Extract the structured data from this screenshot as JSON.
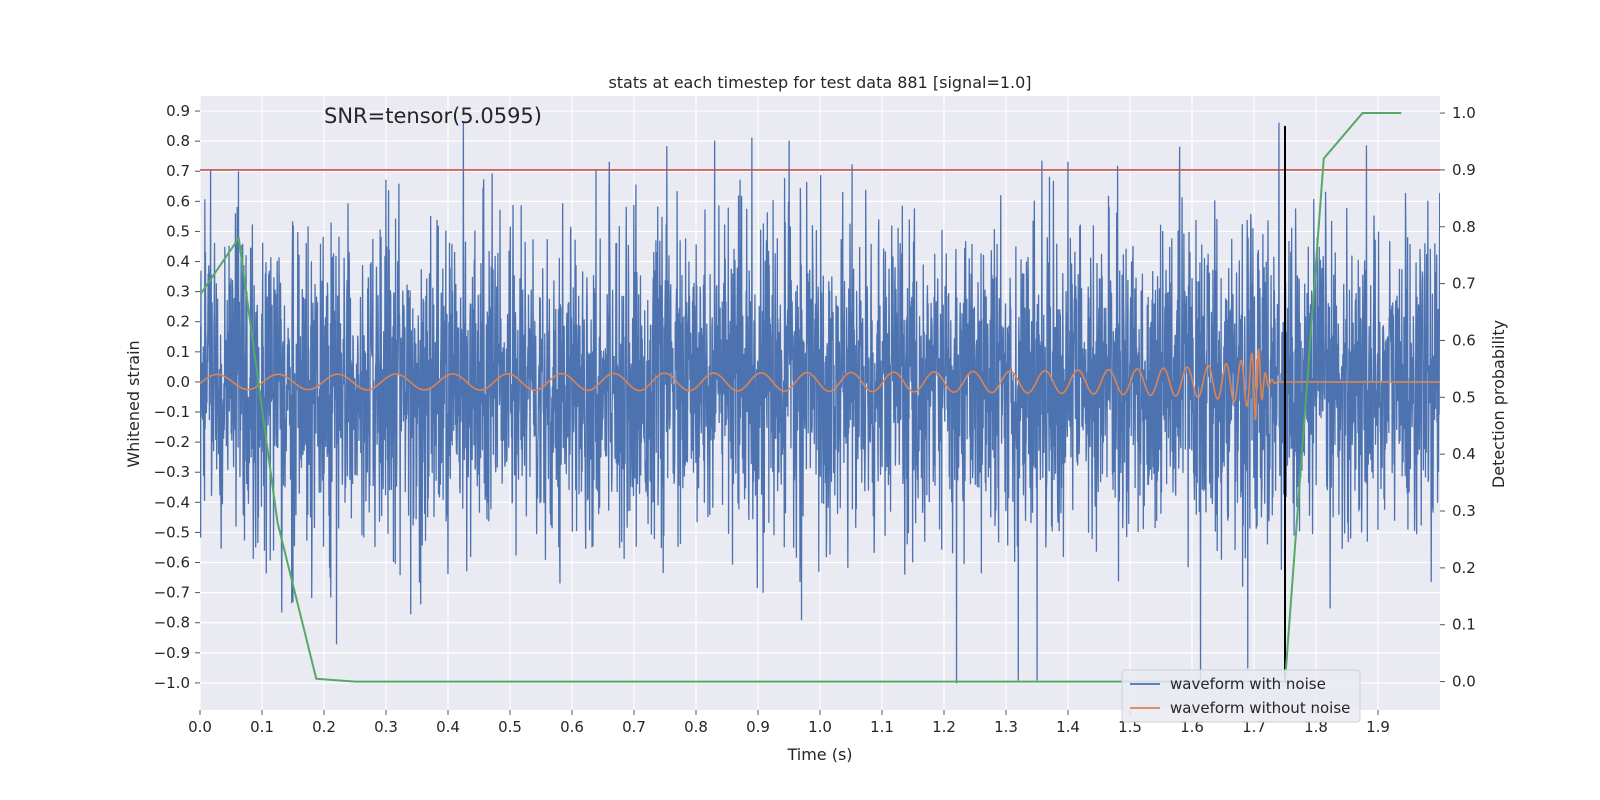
{
  "chart_data": {
    "type": "line",
    "title": "stats at each timestep for test data 881 [signal=1.0]",
    "annotation": "SNR=tensor(5.0595)",
    "xlabel": "Time (s)",
    "ylabel_left": "Whitened strain",
    "ylabel_right": "Detection probability",
    "xlim": [
      0.0,
      2.0
    ],
    "ylim_left": [
      -1.09,
      0.95
    ],
    "ylim_right": [
      -0.05,
      1.03
    ],
    "grid": true,
    "legend_position": "bottom-right",
    "xticks": [
      "0.0",
      "0.1",
      "0.2",
      "0.3",
      "0.4",
      "0.5",
      "0.6",
      "0.7",
      "0.8",
      "0.9",
      "1.0",
      "1.1",
      "1.2",
      "1.3",
      "1.4",
      "1.5",
      "1.6",
      "1.7",
      "1.8",
      "1.9"
    ],
    "yticks_left": [
      "0.9",
      "0.8",
      "0.7",
      "0.6",
      "0.5",
      "0.4",
      "0.3",
      "0.2",
      "0.1",
      "0.0",
      "−0.1",
      "−0.2",
      "−0.3",
      "−0.4",
      "−0.5",
      "−0.6",
      "−0.7",
      "−0.8",
      "−0.9",
      "−1.0"
    ],
    "yticks_right": [
      "1.0",
      "0.9",
      "0.8",
      "0.7",
      "0.6",
      "0.5",
      "0.4",
      "0.3",
      "0.2",
      "0.1",
      "0.0"
    ],
    "threshold": {
      "y": 0.9,
      "axis": "right",
      "color": "#c44e52"
    },
    "merger_marker": {
      "x": 1.75,
      "y_range": [
        -1.0,
        0.85
      ],
      "color": "#000000"
    },
    "series": [
      {
        "name": "waveform with noise",
        "axis": "left",
        "color": "#4c72b0",
        "noise_amplitude": 0.25,
        "peaks": [
          {
            "x": 0.06,
            "y": 0.58
          },
          {
            "x": 0.15,
            "y": -0.73
          },
          {
            "x": 0.21,
            "y": -0.65
          },
          {
            "x": 0.22,
            "y": -0.87
          },
          {
            "x": 0.3,
            "y": 0.67
          },
          {
            "x": 0.34,
            "y": 0.77
          },
          {
            "x": 0.34,
            "y": -0.77
          },
          {
            "x": 0.66,
            "y": 0.73
          },
          {
            "x": 0.83,
            "y": 0.8
          },
          {
            "x": 0.89,
            "y": 0.81
          },
          {
            "x": 0.95,
            "y": 0.8
          },
          {
            "x": 0.97,
            "y": -0.79
          },
          {
            "x": 1.22,
            "y": -1.0
          },
          {
            "x": 1.32,
            "y": -0.99
          },
          {
            "x": 1.35,
            "y": -0.99
          },
          {
            "x": 1.37,
            "y": 0.68
          },
          {
            "x": 1.4,
            "y": 0.73
          },
          {
            "x": 1.58,
            "y": 0.78
          },
          {
            "x": 1.69,
            "y": -0.95
          },
          {
            "x": 1.74,
            "y": 0.86
          },
          {
            "x": 1.75,
            "y": 0.85
          }
        ]
      },
      {
        "name": "waveform without noise",
        "axis": "left",
        "color": "#dd8452",
        "chirp": {
          "t_merger": 1.705,
          "base_amplitude": 0.025,
          "max_amplitude": 0.15,
          "f_start": 10,
          "f_end": 90
        }
      },
      {
        "name": "detection probability",
        "axis": "right",
        "color": "#55a868",
        "x": [
          0.0,
          0.0625,
          0.125,
          0.1875,
          0.25,
          0.3125,
          0.375,
          0.4375,
          0.5,
          0.5625,
          0.625,
          0.6875,
          0.75,
          0.8125,
          0.875,
          0.9375,
          1.0,
          1.0625,
          1.125,
          1.1875,
          1.25,
          1.3125,
          1.375,
          1.4375,
          1.5,
          1.5625,
          1.625,
          1.6875,
          1.75,
          1.8125,
          1.875,
          1.9375
        ],
        "values": [
          0.68,
          0.78,
          0.28,
          0.005,
          0.0,
          0.0,
          0.0,
          0.0,
          0.0,
          0.0,
          0.0,
          0.0,
          0.0,
          0.0,
          0.0,
          0.0,
          0.0,
          0.0,
          0.0,
          0.0,
          0.0,
          0.0,
          0.0,
          0.0,
          0.0,
          0.0,
          0.0,
          0.0,
          0.0,
          0.92,
          1.0,
          1.0
        ]
      }
    ]
  }
}
